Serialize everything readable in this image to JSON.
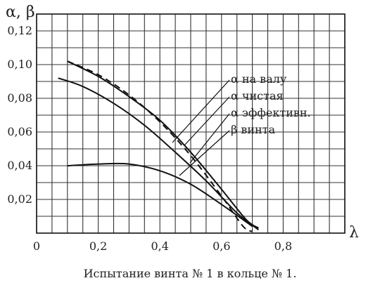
{
  "chart_data": {
    "type": "line",
    "ylabel": "α, β",
    "xlabel": "λ",
    "xlim": [
      0,
      1.0
    ],
    "ylim": [
      0,
      0.13
    ],
    "x_ticks": [
      "0",
      "0,2",
      "0,4",
      "0,6",
      "0,8"
    ],
    "y_ticks": [
      "0,02",
      "0,04",
      "0,06",
      "0,08",
      "0,10",
      "0,12"
    ],
    "grid": true,
    "series": [
      {
        "name": "α на валу",
        "style": "solid",
        "x": [
          0.1,
          0.2,
          0.3,
          0.4,
          0.5,
          0.6,
          0.68,
          0.72
        ],
        "y": [
          0.102,
          0.093,
          0.081,
          0.067,
          0.048,
          0.026,
          0.008,
          0.003
        ]
      },
      {
        "name": "α чистая",
        "style": "dashed",
        "x": [
          0.1,
          0.2,
          0.3,
          0.4,
          0.5,
          0.6,
          0.67,
          0.7
        ],
        "y": [
          0.102,
          0.094,
          0.082,
          0.066,
          0.046,
          0.022,
          0.004,
          0.001
        ]
      },
      {
        "name": "α эффективн.",
        "style": "solid",
        "x": [
          0.07,
          0.15,
          0.25,
          0.35,
          0.45,
          0.55,
          0.65,
          0.72
        ],
        "y": [
          0.092,
          0.087,
          0.077,
          0.064,
          0.048,
          0.031,
          0.012,
          0.002
        ]
      },
      {
        "name": "β винта",
        "style": "solid",
        "x": [
          0.1,
          0.2,
          0.3,
          0.4,
          0.5,
          0.6,
          0.7
        ],
        "y": [
          0.04,
          0.041,
          0.041,
          0.037,
          0.029,
          0.017,
          0.004
        ]
      }
    ],
    "annotations": [
      "α на валу",
      "α чистая",
      "α эффективн.",
      "β винта"
    ],
    "caption": "Испытание винта № 1 в кольце № 1."
  }
}
